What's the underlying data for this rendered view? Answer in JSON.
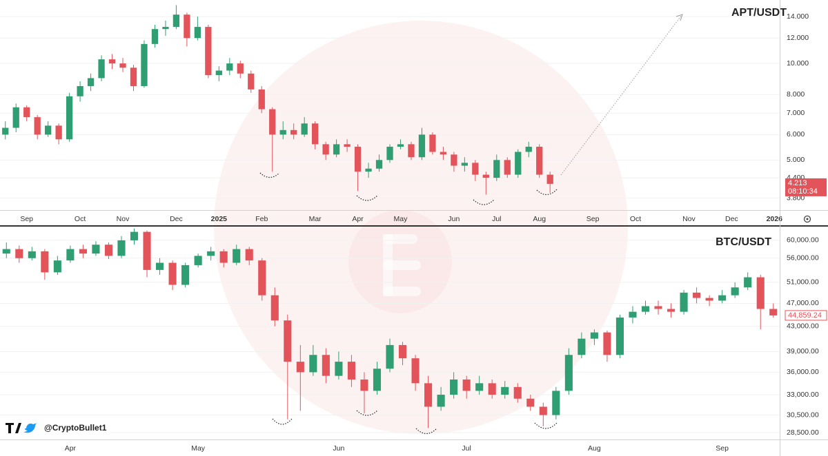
{
  "handle": "@CryptoBullet1",
  "chart_data": [
    {
      "type": "candlestick",
      "title": "APT/USDT",
      "log_scale": true,
      "grid": true,
      "up_color": "#2f9e72",
      "down_color": "#e2545a",
      "ylim": [
        3.49,
        15.77
      ],
      "yticks": [
        {
          "value": 14,
          "label": "14.000"
        },
        {
          "value": 12,
          "label": "12.000"
        },
        {
          "value": 10,
          "label": "10.000"
        },
        {
          "value": 8,
          "label": "8.000"
        },
        {
          "value": 7,
          "label": "7.000"
        },
        {
          "value": 6,
          "label": "6.000"
        },
        {
          "value": 5,
          "label": "5.000"
        },
        {
          "value": 4.4,
          "label": "4.400"
        },
        {
          "value": 3.8,
          "label": "3.800"
        }
      ],
      "last_price": {
        "value": 4.213,
        "label": "4.213"
      },
      "countdown": "08:10:34",
      "categories": [
        null,
        null,
        "Sep",
        null,
        null,
        null,
        null,
        "Oct",
        null,
        null,
        null,
        "Nov",
        null,
        null,
        null,
        null,
        "Dec",
        null,
        null,
        null,
        "2025",
        null,
        null,
        null,
        "Feb",
        null,
        null,
        null,
        null,
        "Mar",
        null,
        null,
        null,
        "Apr",
        null,
        null,
        null,
        "May",
        null,
        null,
        null,
        null,
        "Jun",
        null,
        null,
        null,
        "Jul",
        null,
        null,
        null,
        "Aug",
        null,
        null,
        null,
        null,
        "Sep",
        null,
        null,
        null,
        "Oct",
        null,
        null,
        null,
        null,
        "Nov",
        null,
        null,
        null,
        "Dec",
        null,
        null,
        null,
        "2026"
      ],
      "ohlc": [
        [
          6.0,
          6.6,
          5.8,
          6.3
        ],
        [
          6.3,
          7.5,
          6.1,
          7.3
        ],
        [
          7.3,
          7.4,
          6.6,
          6.8
        ],
        [
          6.8,
          6.9,
          5.8,
          6.0
        ],
        [
          6.0,
          6.6,
          5.9,
          6.4
        ],
        [
          6.4,
          6.5,
          5.6,
          5.8
        ],
        [
          5.8,
          8.1,
          5.7,
          7.9
        ],
        [
          7.9,
          8.8,
          7.6,
          8.5
        ],
        [
          8.5,
          9.3,
          8.2,
          9.0
        ],
        [
          9.0,
          10.6,
          8.8,
          10.3
        ],
        [
          10.3,
          10.7,
          9.6,
          10.0
        ],
        [
          10.0,
          10.4,
          9.4,
          9.7
        ],
        [
          9.7,
          9.9,
          8.2,
          8.5
        ],
        [
          8.5,
          11.8,
          8.4,
          11.5
        ],
        [
          11.5,
          13.2,
          11.2,
          12.8
        ],
        [
          12.8,
          13.6,
          12.2,
          13.0
        ],
        [
          13.0,
          15.2,
          12.8,
          14.2
        ],
        [
          14.2,
          14.4,
          11.3,
          12.0
        ],
        [
          12.0,
          14.0,
          11.8,
          13.0
        ],
        [
          13.0,
          13.2,
          9.0,
          9.2
        ],
        [
          9.2,
          9.8,
          8.8,
          9.5
        ],
        [
          9.5,
          10.4,
          9.2,
          10.0
        ],
        [
          10.0,
          10.2,
          9.0,
          9.3
        ],
        [
          9.3,
          9.5,
          8.1,
          8.3
        ],
        [
          8.3,
          8.5,
          7.0,
          7.2
        ],
        [
          7.2,
          7.3,
          4.6,
          6.0
        ],
        [
          6.0,
          6.6,
          5.8,
          6.2
        ],
        [
          6.2,
          6.5,
          5.8,
          6.0
        ],
        [
          6.0,
          6.8,
          5.9,
          6.5
        ],
        [
          6.5,
          6.6,
          5.4,
          5.6
        ],
        [
          5.6,
          5.7,
          5.0,
          5.2
        ],
        [
          5.2,
          5.8,
          5.1,
          5.6
        ],
        [
          5.6,
          5.8,
          5.3,
          5.5
        ],
        [
          5.5,
          5.6,
          4.0,
          4.6
        ],
        [
          4.6,
          4.9,
          4.4,
          4.7
        ],
        [
          4.7,
          5.2,
          4.6,
          5.0
        ],
        [
          5.0,
          5.6,
          4.9,
          5.5
        ],
        [
          5.5,
          5.8,
          5.4,
          5.6
        ],
        [
          5.6,
          5.7,
          5.0,
          5.1
        ],
        [
          5.1,
          6.3,
          5.0,
          6.0
        ],
        [
          6.0,
          6.1,
          5.2,
          5.3
        ],
        [
          5.3,
          5.5,
          5.0,
          5.2
        ],
        [
          5.2,
          5.3,
          4.6,
          4.8
        ],
        [
          4.8,
          5.1,
          4.6,
          4.9
        ],
        [
          4.9,
          5.0,
          4.3,
          4.5
        ],
        [
          4.5,
          4.6,
          3.9,
          4.4
        ],
        [
          4.4,
          5.2,
          4.3,
          5.0
        ],
        [
          5.0,
          5.1,
          4.4,
          4.5
        ],
        [
          4.5,
          5.4,
          4.4,
          5.3
        ],
        [
          5.3,
          5.7,
          5.1,
          5.5
        ],
        [
          5.5,
          5.6,
          4.4,
          4.5
        ],
        [
          4.5,
          4.6,
          3.95,
          4.213
        ],
        null,
        null,
        null,
        null,
        null,
        null,
        null,
        null,
        null,
        null,
        null,
        null,
        null,
        null,
        null,
        null,
        null,
        null,
        null,
        null,
        null
      ]
    },
    {
      "type": "candlestick",
      "title": "BTC/USDT",
      "log_scale": true,
      "grid": true,
      "up_color": "#2f9e72",
      "down_color": "#e2545a",
      "ylim": [
        27750,
        63100
      ],
      "yticks": [
        {
          "value": 60000,
          "label": "60,000.00"
        },
        {
          "value": 56000,
          "label": "56,000.00"
        },
        {
          "value": 51000,
          "label": "51,000.00"
        },
        {
          "value": 47000,
          "label": "47,000.00"
        },
        {
          "value": 43000,
          "label": "43,000.00"
        },
        {
          "value": 39000,
          "label": "39,000.00"
        },
        {
          "value": 36000,
          "label": "36,000.00"
        },
        {
          "value": 33000,
          "label": "33,000.00"
        },
        {
          "value": 30500,
          "label": "30,500.00"
        },
        {
          "value": 28500,
          "label": "28,500.00"
        }
      ],
      "last_price": {
        "value": 44859.24,
        "label": "44,859.24"
      },
      "categories": [
        null,
        null,
        null,
        null,
        null,
        "Apr",
        null,
        null,
        null,
        null,
        null,
        null,
        null,
        null,
        null,
        "May",
        null,
        null,
        null,
        null,
        null,
        null,
        null,
        null,
        null,
        null,
        "Jun",
        null,
        null,
        null,
        null,
        null,
        null,
        null,
        null,
        null,
        "Jul",
        null,
        null,
        null,
        null,
        null,
        null,
        null,
        null,
        null,
        "Aug",
        null,
        null,
        null,
        null,
        null,
        null,
        null,
        null,
        null,
        "Sep",
        null,
        null,
        null,
        null
      ],
      "ohlc": [
        [
          57000,
          59500,
          56000,
          58000
        ],
        [
          58000,
          58800,
          55000,
          56000
        ],
        [
          56000,
          58500,
          55500,
          57500
        ],
        [
          57500,
          58000,
          51500,
          53000
        ],
        [
          53000,
          56500,
          52500,
          55500
        ],
        [
          55500,
          58800,
          55000,
          58000
        ],
        [
          58000,
          59000,
          56000,
          57000
        ],
        [
          57000,
          59800,
          56500,
          59000
        ],
        [
          59000,
          59500,
          55800,
          56500
        ],
        [
          56500,
          61000,
          56000,
          60000
        ],
        [
          60000,
          62800,
          59000,
          62000
        ],
        [
          62000,
          62300,
          52000,
          53500
        ],
        [
          53500,
          56000,
          52500,
          55000
        ],
        [
          55000,
          55500,
          49500,
          50500
        ],
        [
          50500,
          55000,
          50000,
          54500
        ],
        [
          54500,
          57000,
          54000,
          56500
        ],
        [
          56500,
          58500,
          55500,
          57500
        ],
        [
          57500,
          58000,
          54000,
          55000
        ],
        [
          55000,
          59000,
          54500,
          58000
        ],
        [
          58000,
          58500,
          54500,
          55500
        ],
        [
          55500,
          56000,
          47500,
          48500
        ],
        [
          48500,
          50000,
          43000,
          44000
        ],
        [
          44000,
          45000,
          30000,
          37500
        ],
        [
          37500,
          40000,
          31000,
          36000
        ],
        [
          36000,
          40000,
          35500,
          38500
        ],
        [
          38500,
          39500,
          34500,
          35500
        ],
        [
          35500,
          39000,
          35000,
          37500
        ],
        [
          37500,
          38500,
          34000,
          35000
        ],
        [
          35000,
          36000,
          30700,
          33500
        ],
        [
          33500,
          37500,
          33000,
          36500
        ],
        [
          36500,
          41000,
          36000,
          40000
        ],
        [
          40000,
          40500,
          37000,
          38000
        ],
        [
          38000,
          38500,
          33500,
          34500
        ],
        [
          34500,
          35500,
          29000,
          31500
        ],
        [
          31500,
          34000,
          31000,
          33000
        ],
        [
          33000,
          36000,
          32500,
          35000
        ],
        [
          35000,
          35500,
          32500,
          33500
        ],
        [
          33500,
          35500,
          33000,
          34500
        ],
        [
          34500,
          35000,
          32500,
          33000
        ],
        [
          33000,
          34800,
          32500,
          34000
        ],
        [
          34000,
          34500,
          32000,
          32500
        ],
        [
          32500,
          33000,
          31000,
          31500
        ],
        [
          31500,
          32000,
          29200,
          30500
        ],
        [
          30500,
          34000,
          30000,
          33500
        ],
        [
          33500,
          39500,
          33000,
          38500
        ],
        [
          38500,
          42000,
          38000,
          41000
        ],
        [
          41000,
          42500,
          40000,
          42000
        ],
        [
          42000,
          42300,
          37500,
          38500
        ],
        [
          38500,
          45000,
          38000,
          44500
        ],
        [
          44500,
          46500,
          43500,
          45500
        ],
        [
          45500,
          47500,
          45000,
          46500
        ],
        [
          46500,
          47500,
          45000,
          46000
        ],
        [
          46000,
          47000,
          44500,
          45500
        ],
        [
          45500,
          49500,
          45000,
          49000
        ],
        [
          49000,
          50000,
          47000,
          48000
        ],
        [
          48000,
          48500,
          46500,
          47500
        ],
        [
          47500,
          49500,
          47000,
          48500
        ],
        [
          48500,
          51000,
          48000,
          50000
        ],
        [
          50000,
          53000,
          49500,
          52000
        ],
        [
          52000,
          52500,
          42500,
          46000
        ],
        [
          46000,
          47000,
          44500,
          44859.24
        ]
      ]
    }
  ]
}
